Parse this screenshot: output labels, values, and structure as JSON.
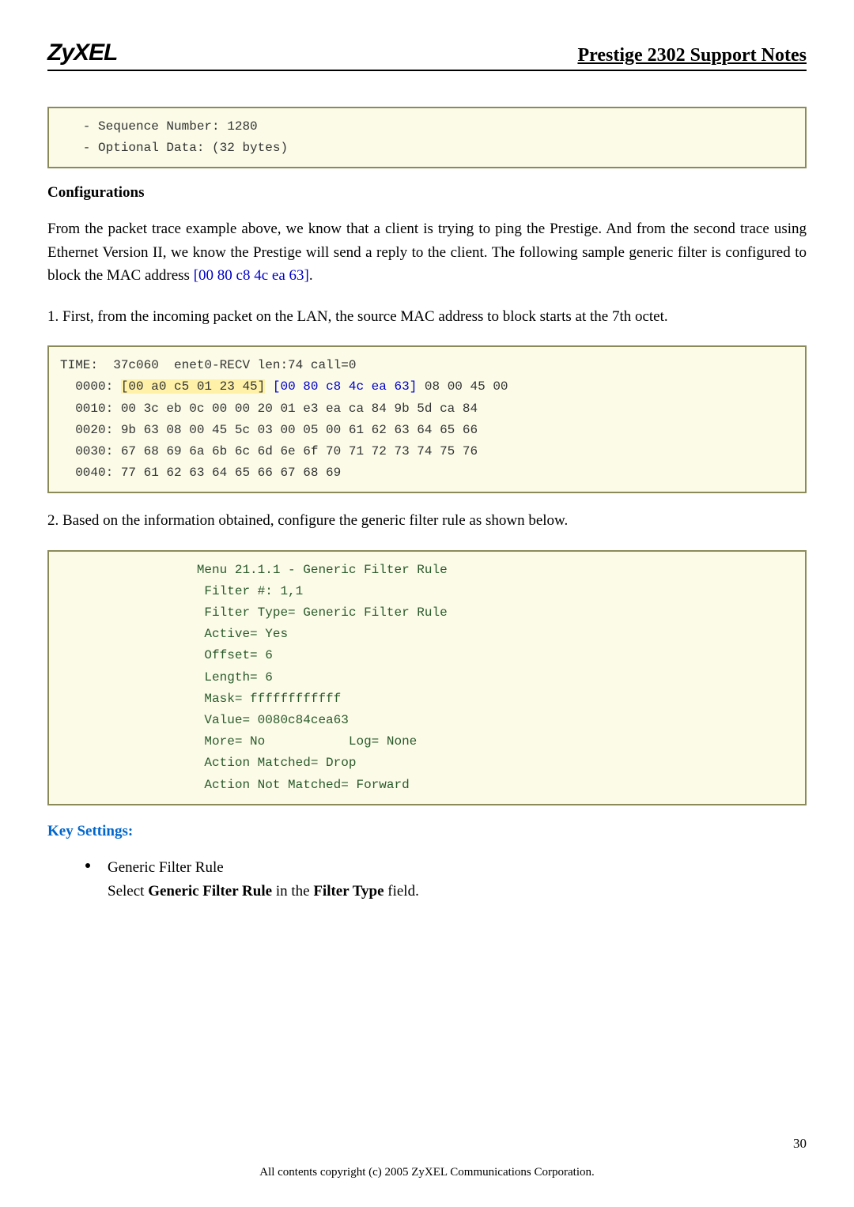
{
  "header": {
    "logo": "ZyXEL",
    "title": "Prestige 2302 Support Notes"
  },
  "box1": {
    "line1": "   - Sequence Number: 1280",
    "line2": "   - Optional Data: (32 bytes)"
  },
  "sec1_heading": "Configurations",
  "para1_a": "From the packet trace example above, we know that a client is trying to ping the Prestige. And from the second trace using Ethernet Version II, we know the Prestige will send a reply to the client. The following sample generic filter is configured to block the MAC address ",
  "para1_mac": "[00 80 c8 4c ea 63]",
  "para1_b": ".",
  "para2": "1. First, from the incoming packet on the LAN, the source MAC address to block starts at the 7th octet.",
  "box2": {
    "l0": "TIME:  37c060  enet0-RECV len:74 call=0",
    "l1a": "  0000: ",
    "l1b": "[00 a0 c5 01 23 45]",
    "l1c": " ",
    "l1d": "[00 80 c8 4c ea 63]",
    "l1e": " 08 00 45 00",
    "l2": "  0010: 00 3c eb 0c 00 00 20 01 e3 ea ca 84 9b 5d ca 84",
    "l3": "  0020: 9b 63 08 00 45 5c 03 00 05 00 61 62 63 64 65 66",
    "l4": "  0030: 67 68 69 6a 6b 6c 6d 6e 6f 70 71 72 73 74 75 76",
    "l5": "  0040: 77 61 62 63 64 65 66 67 68 69"
  },
  "para3": "2. Based on the information obtained, configure the generic filter rule as shown below.",
  "box3": {
    "l0": "                  Menu 21.1.1 - Generic Filter Rule",
    "l1": "                   Filter #: 1,1",
    "l2": "                   Filter Type= Generic Filter Rule",
    "l3": "                   Active= Yes",
    "l4": "                   Offset= 6",
    "l5": "                   Length= 6",
    "l6": "                   Mask= ffffffffffff",
    "l7": "                   Value= 0080c84cea63",
    "l8": "                   More= No           Log= None",
    "l9": "                   Action Matched= Drop",
    "l10": "                   Action Not Matched= Forward"
  },
  "key_settings": "Key Settings:",
  "bullet": {
    "title": "Generic Filter Rule",
    "line_a": "Select ",
    "line_b": "Generic Filter Rule",
    "line_c": " in the ",
    "line_d": "Filter Type",
    "line_e": " field."
  },
  "footer": "All contents copyright (c) 2005 ZyXEL Communications Corporation.",
  "page_num": "30"
}
